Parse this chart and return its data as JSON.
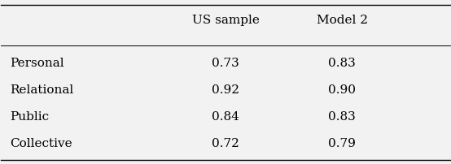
{
  "col_headers": [
    "US sample",
    "Model 2"
  ],
  "row_labels": [
    "Personal",
    "Relational",
    "Public",
    "Collective"
  ],
  "values": [
    [
      "0.73",
      "0.83"
    ],
    [
      "0.92",
      "0.90"
    ],
    [
      "0.84",
      "0.83"
    ],
    [
      "0.72",
      "0.79"
    ]
  ],
  "bg_color": "#f2f2f2",
  "text_color": "#000000",
  "font_size": 11,
  "header_font_size": 11
}
